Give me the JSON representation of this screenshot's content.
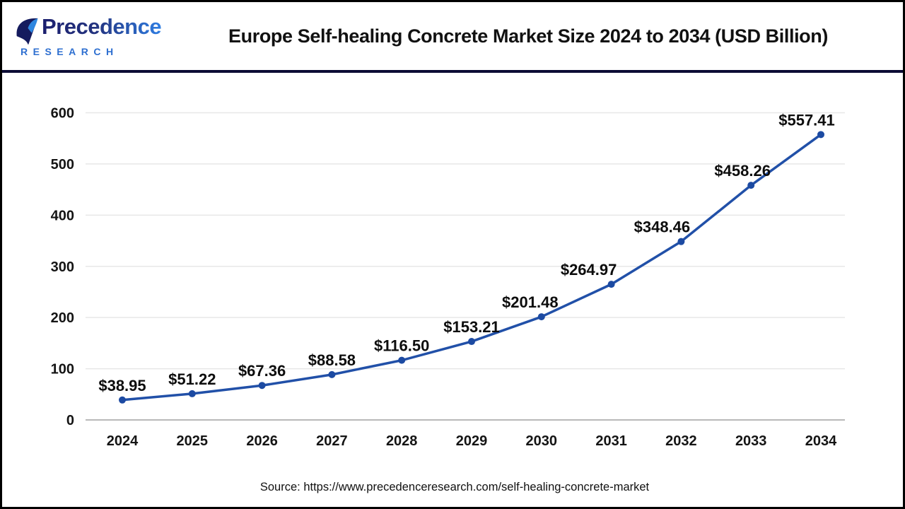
{
  "header": {
    "logo": {
      "name": "Precedence",
      "subtitle": "RESEARCH"
    },
    "title": "Europe Self-healing Concrete Market Size 2024 to 2034 (USD Billion)"
  },
  "chart_data": {
    "type": "line",
    "title": "Europe Self-healing Concrete Market Size 2024 to 2034 (USD Billion)",
    "categories": [
      "2024",
      "2025",
      "2026",
      "2027",
      "2028",
      "2029",
      "2030",
      "2031",
      "2032",
      "2033",
      "2034"
    ],
    "values": [
      38.95,
      51.22,
      67.36,
      88.58,
      116.5,
      153.21,
      201.48,
      264.97,
      348.46,
      458.26,
      557.41
    ],
    "point_labels": [
      "$38.95",
      "$51.22",
      "$67.36",
      "$88.58",
      "$116.50",
      "$153.21",
      "$201.48",
      "$264.97",
      "$348.46",
      "$458.26",
      "$557.41"
    ],
    "xlabel": "",
    "ylabel": "",
    "y_ticks": [
      0,
      100,
      200,
      300,
      400,
      500,
      600
    ],
    "ylim": [
      0,
      620
    ],
    "grid": true,
    "legend": false,
    "line_color": "#2150a8",
    "marker_color": "#1c4aa2",
    "data_label_color": "#0d0d0d",
    "tick_label_color": "#141414",
    "grid_color": "#e7e7e7",
    "axis_color": "#b9b9b9"
  },
  "footer": {
    "source": "Source: https://www.precedenceresearch.com/self-healing-concrete-market"
  }
}
